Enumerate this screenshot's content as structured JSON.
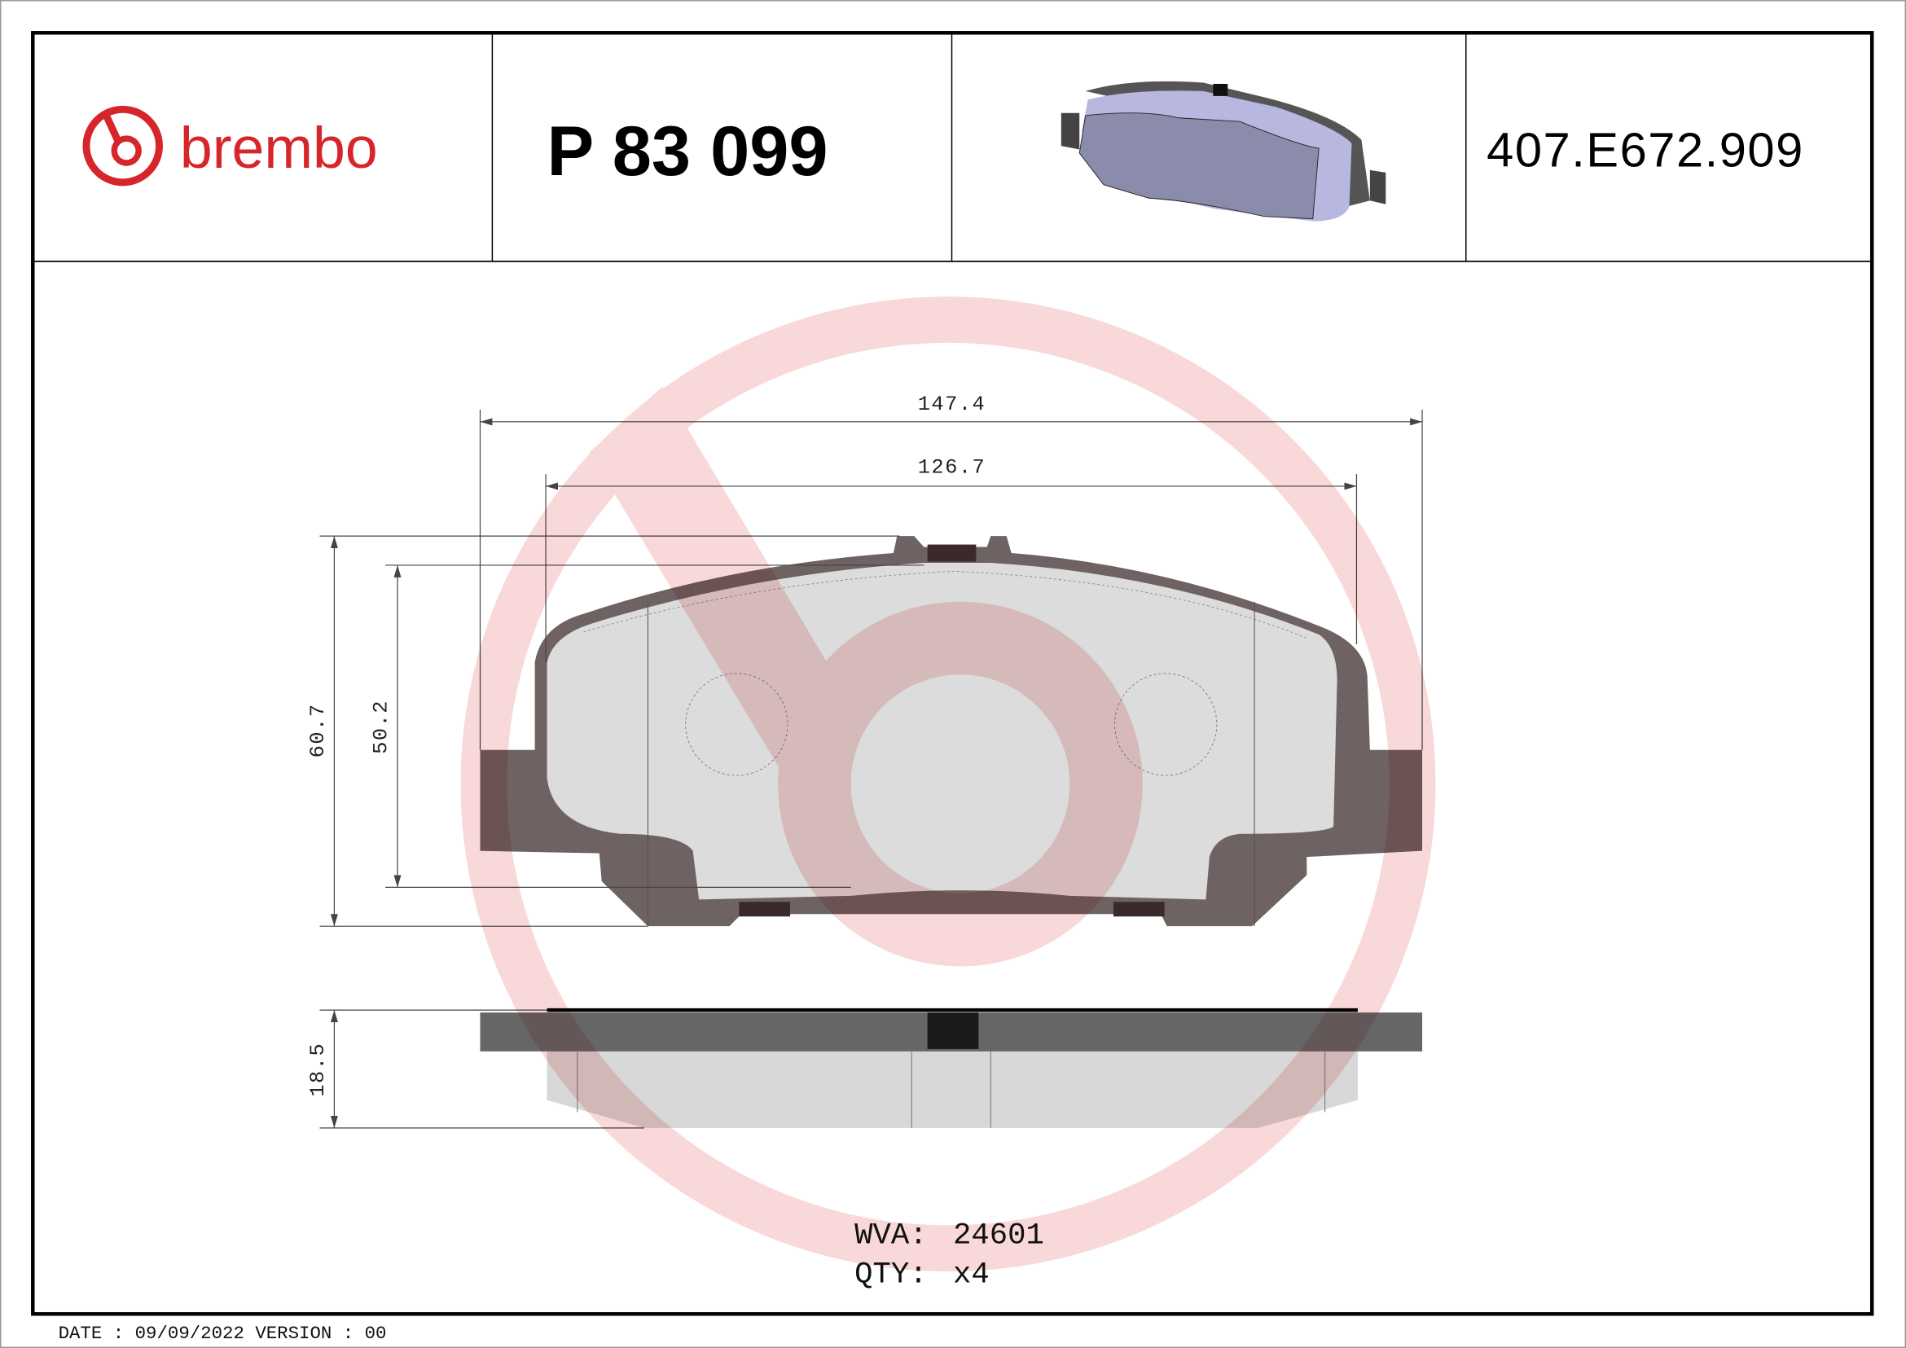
{
  "header": {
    "brand": "brembo",
    "brand_color": "#d7262b",
    "part_number": "P 83 099",
    "reference_code": "407.E672.909"
  },
  "drawing": {
    "dimensions": {
      "overall_width": "147.4",
      "friction_width": "126.7",
      "overall_height": "60.7",
      "friction_height": "50.2",
      "thickness": "18.5"
    },
    "watermark": "brembo-logo",
    "colors": {
      "backplate": "#6e6262",
      "friction": "#dcdcdc",
      "watermark": "#f2b8b8"
    }
  },
  "info": {
    "wva_label": "WVA:",
    "wva_value": "24601",
    "qty_label": "QTY:",
    "qty_value": "x4"
  },
  "footer": {
    "date_text": "DATE : 09/09/2022 VERSION : 00"
  }
}
